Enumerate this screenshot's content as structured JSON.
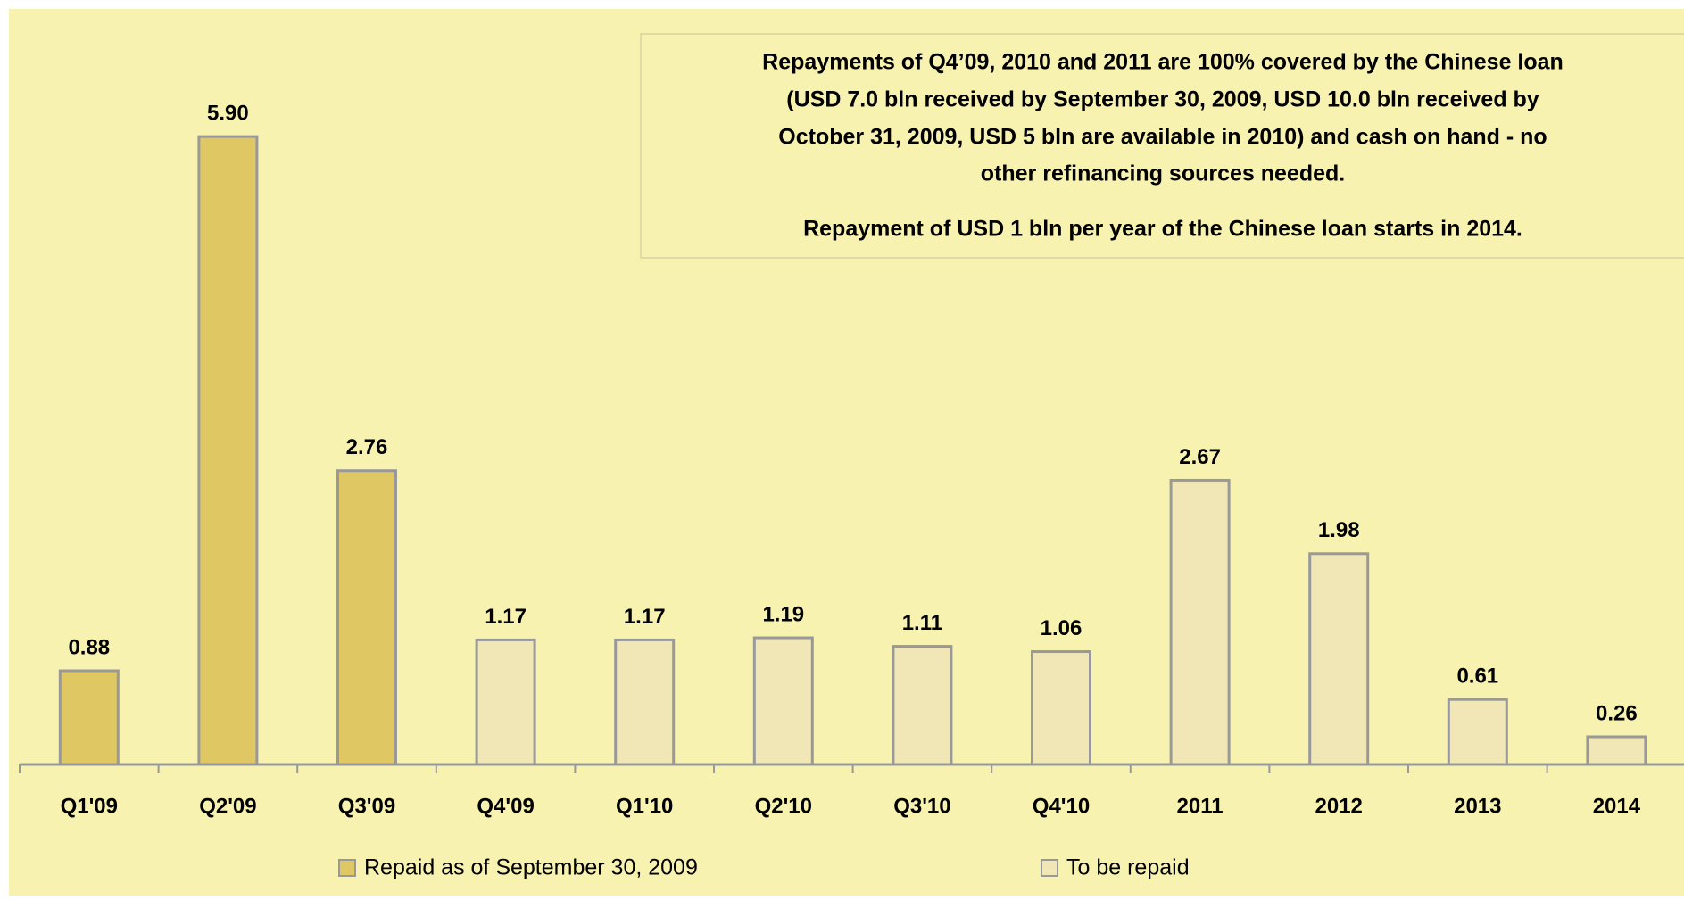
{
  "chart_data": {
    "type": "bar",
    "annotations": [
      "Repayments of Q4’09, 2010 and 2011 are 100% covered by the Chinese loan",
      "(USD 7.0 bln received by September 30, 2009, USD 10.0 bln received by",
      "October 31, 2009, USD 5 bln are available in 2010) and cash on hand - no",
      "other refinancing sources needed.",
      "Repayment of USD 1 bln per year of the Chinese loan starts in 2014."
    ],
    "categories": [
      "Q1'09",
      "Q2'09",
      "Q3'09",
      "Q4'09",
      "Q1'10",
      "Q2'10",
      "Q3'10",
      "Q4'10",
      "2011",
      "2012",
      "2013",
      "2014"
    ],
    "series": [
      {
        "name": "Repaid as of September 30, 2009",
        "color": "#dfc763",
        "values": [
          0.88,
          5.9,
          2.76,
          null,
          null,
          null,
          null,
          null,
          null,
          null,
          null,
          null
        ],
        "value_labels": [
          "0.88",
          "5.90",
          "2.76",
          null,
          null,
          null,
          null,
          null,
          null,
          null,
          null,
          null
        ]
      },
      {
        "name": "To be repaid",
        "color": "#f1e6b6",
        "values": [
          null,
          null,
          null,
          1.17,
          1.17,
          1.19,
          1.11,
          1.06,
          2.67,
          1.98,
          0.61,
          0.26
        ],
        "value_labels": [
          null,
          null,
          null,
          "1.17",
          "1.17",
          "1.19",
          "1.11",
          "1.06",
          "2.67",
          "1.98",
          "0.61",
          "0.26"
        ]
      }
    ]
  }
}
